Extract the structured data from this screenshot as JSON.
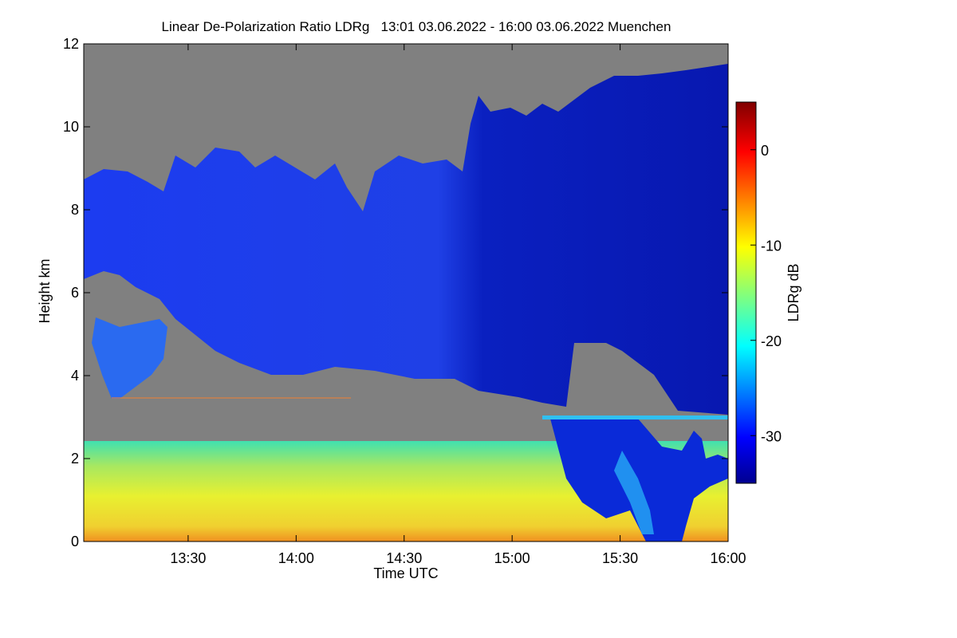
{
  "chart_data": {
    "type": "heatmap",
    "title": "Linear De-Polarization Ratio LDRg   13:01 03.06.2022 - 16:00 03.06.2022 Muenchen",
    "xlabel": "Time UTC",
    "ylabel": "Height km",
    "xlim": [
      "13:01",
      "16:00"
    ],
    "ylim": [
      0,
      12
    ],
    "x_ticks": [
      "13:30",
      "14:00",
      "14:30",
      "15:00",
      "15:30",
      "16:00"
    ],
    "y_ticks": [
      "0",
      "2",
      "4",
      "6",
      "8",
      "10",
      "12"
    ],
    "colorbar": {
      "label": "LDRg dB",
      "range": [
        -35,
        5
      ],
      "ticks": [
        "0",
        "-10",
        "-20",
        "-30"
      ],
      "colormap": "jet"
    },
    "colors": {
      "no_data": "#808080",
      "cirrus": "#1e3fe8",
      "boundary_layer": "#c8e650"
    }
  }
}
